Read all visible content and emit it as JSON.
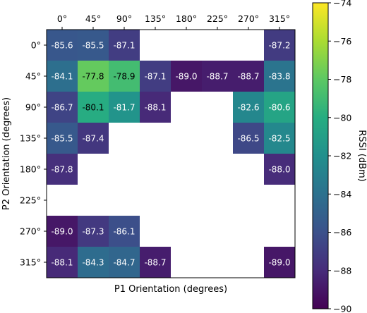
{
  "chart_data": {
    "type": "heatmap",
    "xlabel": "P1 Orientation (degrees)",
    "ylabel": "P2 Orientation (degrees)",
    "x_categories": [
      "0°",
      "45°",
      "90°",
      "135°",
      "180°",
      "225°",
      "270°",
      "315°"
    ],
    "y_categories": [
      "0°",
      "45°",
      "90°",
      "135°",
      "180°",
      "225°",
      "270°",
      "315°"
    ],
    "values": [
      [
        -85.6,
        -85.5,
        -87.1,
        null,
        null,
        null,
        null,
        -87.2
      ],
      [
        -84.1,
        -77.8,
        -78.9,
        -87.1,
        -89.0,
        -88.7,
        -88.7,
        -83.8
      ],
      [
        -86.7,
        -80.1,
        -81.7,
        -88.1,
        null,
        null,
        -82.6,
        -80.6
      ],
      [
        -85.5,
        -87.4,
        null,
        null,
        null,
        null,
        -86.5,
        -82.5
      ],
      [
        -87.8,
        null,
        null,
        null,
        null,
        null,
        null,
        -88.0
      ],
      [
        null,
        null,
        null,
        null,
        null,
        null,
        null,
        null
      ],
      [
        -89.0,
        -87.3,
        -86.1,
        null,
        null,
        null,
        null,
        null
      ],
      [
        -88.1,
        -84.3,
        -84.7,
        -88.7,
        null,
        null,
        null,
        -89.0
      ]
    ],
    "colorbar": {
      "label": "RSSI (dBm)",
      "range": [
        -90,
        -74
      ],
      "ticks": [
        "-74",
        "-76",
        "-78",
        "-80",
        "-82",
        "-84",
        "-86",
        "-88",
        "-90"
      ],
      "colormap": "viridis"
    },
    "x_axis_position": "top"
  }
}
